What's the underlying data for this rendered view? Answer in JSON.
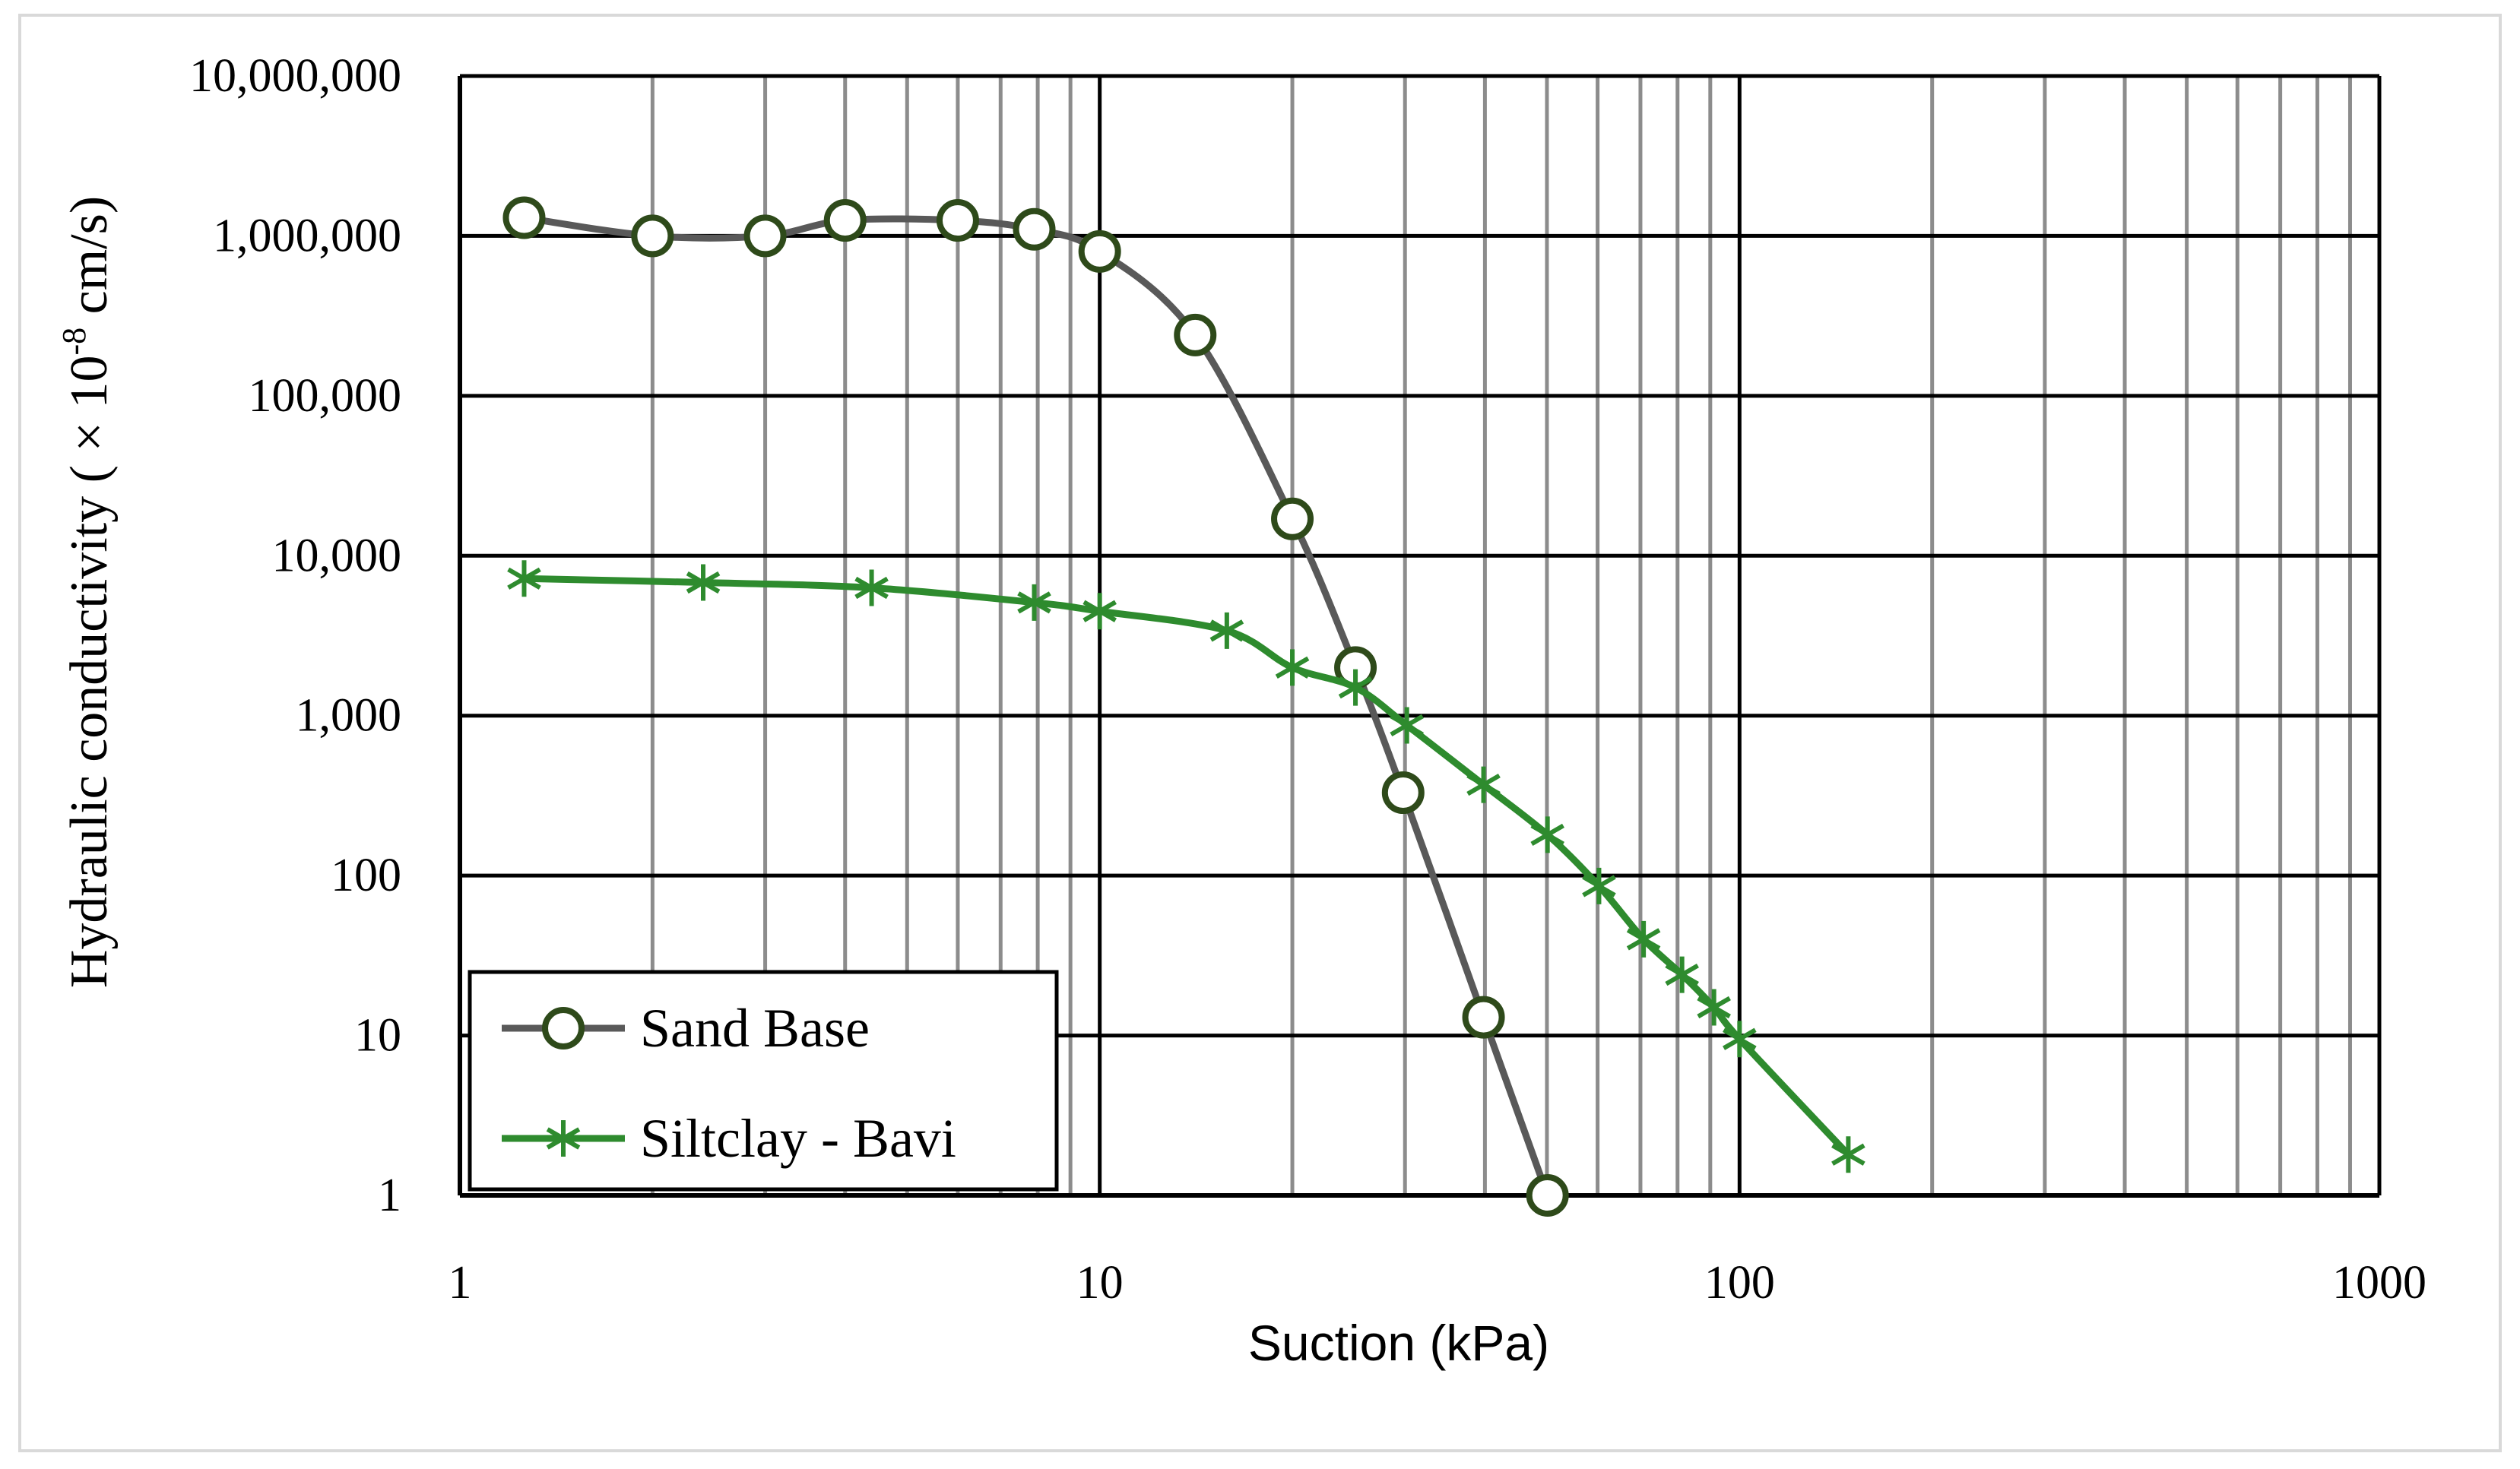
{
  "chart_data": {
    "type": "line",
    "xscale": "log",
    "yscale": "log",
    "xlim": [
      1,
      1000
    ],
    "ylim": [
      1,
      10000000
    ],
    "xlabel": "Suction (kPa)",
    "ylabel_main": "Hydraulic conductivity ( ",
    "ylabel_x": "× 10",
    "ylabel_sup": "-8",
    "ylabel_end": " cm/s)",
    "x_ticks": [
      "1",
      "10",
      "100",
      "1000"
    ],
    "y_ticks": [
      "1",
      "10",
      "100",
      "1,000",
      "10,000",
      "100,000",
      "1,000,000",
      "10,000,000"
    ],
    "grid": "major and minor",
    "legend_position": "bottom-left",
    "series": [
      {
        "name": "Sand Base",
        "marker": "circle",
        "color": "#595959",
        "marker_color": "#2e4a1a",
        "x": [
          1.26,
          2.0,
          3.0,
          4.0,
          6.0,
          7.9,
          10.0,
          14.1,
          20.0,
          25.1,
          29.8,
          39.8,
          50.1
        ],
        "y": [
          1300000,
          1000000,
          1000000,
          1250000,
          1250000,
          1100000,
          800000,
          240000,
          17000,
          2000,
          330,
          13,
          1
        ]
      },
      {
        "name": "Siltclay - Bavi",
        "marker": "star",
        "color": "#2e8b2e",
        "marker_color": "#2e8b2e",
        "x": [
          1.26,
          2.4,
          4.4,
          7.9,
          10.0,
          15.8,
          20.0,
          25.1,
          30.2,
          39.8,
          50.1,
          60.3,
          70.8,
          81.3,
          91.2,
          100.0,
          147.9
        ],
        "y": [
          7200,
          6800,
          6300,
          5100,
          4500,
          3400,
          2000,
          1500,
          870,
          370,
          180,
          86,
          40,
          24,
          15,
          9.5,
          1.8
        ]
      }
    ]
  }
}
